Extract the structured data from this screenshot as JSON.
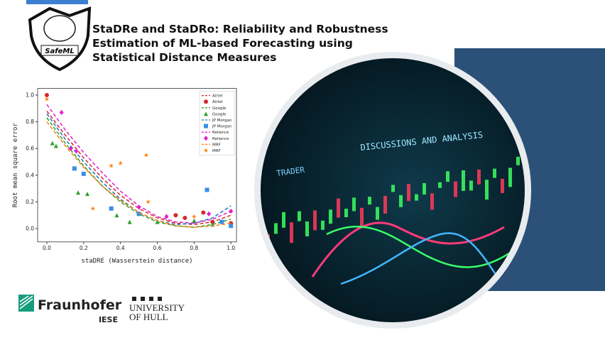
{
  "header": {
    "title_lines": [
      "StaDRe and StaDRo: Reliability and Robustness",
      "Estimation of ML-based Forecasting using",
      "Statistical Distance Measures"
    ]
  },
  "logos": {
    "safeml": "SafeML",
    "fraunhofer": "Fraunhofer",
    "fraunhofer_unit": "IESE",
    "hull": [
      "UNIVERSITY",
      "OF HULL"
    ]
  },
  "image": {
    "texts": [
      "DISCUSSIONS AND ANALYSIS",
      "TRADER"
    ]
  },
  "plot": {
    "type": "scatter",
    "xlabel": "staDRE (Wasserstein distance)",
    "ylabel": "Root mean square error",
    "xlim": [
      -0.05,
      1.03
    ],
    "ylim": [
      -0.1,
      1.05
    ],
    "xticks": [
      {
        "value": 0,
        "label": "0.0"
      },
      {
        "value": 0.2,
        "label": "0.2"
      },
      {
        "value": 0.4,
        "label": "0.4"
      },
      {
        "value": 0.6,
        "label": "0.6"
      },
      {
        "value": 0.8,
        "label": "0.8"
      },
      {
        "value": 1,
        "label": "1.0"
      }
    ],
    "yticks": [
      {
        "value": 0,
        "label": "0.0"
      },
      {
        "value": 0.2,
        "label": "0.2"
      },
      {
        "value": 0.4,
        "label": "0.4"
      },
      {
        "value": 0.6,
        "label": "0.6"
      },
      {
        "value": 0.8,
        "label": "0.8"
      },
      {
        "value": 1,
        "label": "1.0"
      }
    ],
    "legend": "upper right",
    "series": [
      {
        "name": "Airtel",
        "kind": "line",
        "color": "#d62728",
        "x": [
          0,
          0.1,
          0.2,
          0.3,
          0.4,
          0.5,
          0.6,
          0.7,
          0.8,
          0.9,
          1
        ],
        "values": [
          0.88,
          0.7,
          0.53,
          0.38,
          0.25,
          0.15,
          0.08,
          0.04,
          0.03,
          0.05,
          0.1
        ]
      },
      {
        "name": "Airtel",
        "kind": "scatter",
        "marker": "circle",
        "color": "#d62728",
        "x": [
          0,
          0.7,
          0.75,
          0.85,
          0.9,
          1
        ],
        "values": [
          1,
          0.1,
          0.08,
          0.12,
          0.05,
          0.04
        ]
      },
      {
        "name": "Google",
        "kind": "line",
        "color": "#2ca02c",
        "x": [
          0,
          0.1,
          0.2,
          0.3,
          0.4,
          0.5,
          0.6,
          0.7,
          0.8,
          0.9,
          1
        ],
        "values": [
          0.83,
          0.64,
          0.47,
          0.32,
          0.2,
          0.11,
          0.05,
          0.02,
          0.01,
          0.03,
          0.07
        ]
      },
      {
        "name": "Google",
        "kind": "scatter",
        "marker": "triangle",
        "color": "#2ca02c",
        "x": [
          0.03,
          0.05,
          0.17,
          0.22,
          0.38,
          0.45,
          0.6,
          0.8,
          0.9
        ],
        "values": [
          0.64,
          0.62,
          0.27,
          0.26,
          0.1,
          0.05,
          0.05,
          0.06,
          0.03
        ]
      },
      {
        "name": "JP Morgan",
        "kind": "line",
        "color": "#1f77b4",
        "x": [
          0,
          0.1,
          0.2,
          0.3,
          0.4,
          0.5,
          0.6,
          0.7,
          0.8,
          0.9,
          1
        ],
        "values": [
          0.86,
          0.67,
          0.5,
          0.35,
          0.22,
          0.12,
          0.06,
          0.03,
          0.04,
          0.08,
          0.17
        ]
      },
      {
        "name": "JP Morgan",
        "kind": "scatter",
        "marker": "square",
        "color": "#3a8ee6",
        "x": [
          0.15,
          0.2,
          0.35,
          0.5,
          0.87,
          0.95,
          1
        ],
        "values": [
          0.45,
          0.41,
          0.15,
          0.11,
          0.29,
          0.05,
          0.02
        ]
      },
      {
        "name": "Reliance",
        "kind": "line",
        "color": "#e01fd0",
        "x": [
          0,
          0.1,
          0.2,
          0.3,
          0.4,
          0.5,
          0.6,
          0.7,
          0.8,
          0.9,
          1
        ],
        "values": [
          0.93,
          0.74,
          0.57,
          0.42,
          0.28,
          0.17,
          0.09,
          0.05,
          0.04,
          0.07,
          0.13
        ]
      },
      {
        "name": "Reliance",
        "kind": "scatter",
        "marker": "diamond",
        "color": "#e01fd0",
        "x": [
          0.08,
          0.13,
          0.16,
          0.5,
          0.65,
          0.88,
          1
        ],
        "values": [
          0.87,
          0.6,
          0.58,
          0.16,
          0.09,
          0.11,
          0.13
        ]
      },
      {
        "name": "MRF",
        "kind": "line",
        "color": "#ff7f0e",
        "x": [
          0,
          0.1,
          0.2,
          0.3,
          0.4,
          0.5,
          0.6,
          0.7,
          0.8,
          0.9,
          1
        ],
        "values": [
          0.8,
          0.62,
          0.46,
          0.32,
          0.21,
          0.12,
          0.06,
          0.02,
          0.01,
          0.02,
          0.04
        ]
      },
      {
        "name": "MRF",
        "kind": "scatter",
        "marker": "star",
        "color": "#ff7f0e",
        "x": [
          0,
          0.25,
          0.35,
          0.4,
          0.54,
          0.55,
          0.8
        ],
        "values": [
          0.97,
          0.15,
          0.47,
          0.49,
          0.55,
          0.2,
          0.09
        ]
      }
    ]
  }
}
